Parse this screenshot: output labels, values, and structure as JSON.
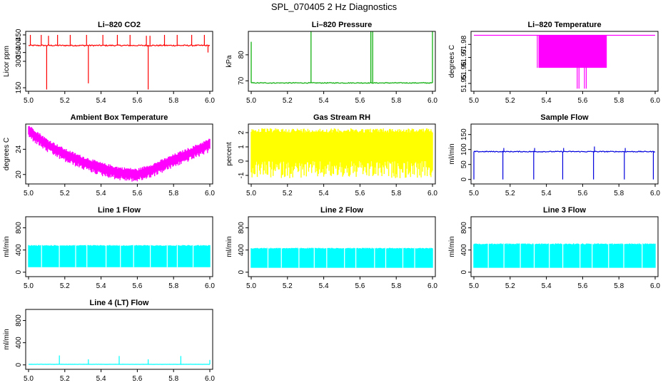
{
  "figure": {
    "title": "SPL_070405  2 Hz Diagnostics"
  },
  "chart_data": [
    {
      "type": "line",
      "title": "Li–820 CO2",
      "ylabel": "Licor ppm",
      "color": "#ff0000",
      "xlim": [
        5.0,
        6.0
      ],
      "ylim": [
        130,
        470
      ],
      "xticks": [
        "5.0",
        "5.2",
        "5.4",
        "5.6",
        "5.8",
        "6.0"
      ],
      "yticks": [
        150,
        300,
        350,
        400,
        450
      ],
      "baseline": 390,
      "noise": 7,
      "band": 0,
      "spikes": [
        [
          5.01,
          450
        ],
        [
          5.07,
          450
        ],
        [
          5.1,
          140
        ],
        [
          5.11,
          445
        ],
        [
          5.16,
          450
        ],
        [
          5.23,
          450
        ],
        [
          5.32,
          450
        ],
        [
          5.33,
          175
        ],
        [
          5.41,
          450
        ],
        [
          5.49,
          450
        ],
        [
          5.56,
          450
        ],
        [
          5.65,
          445
        ],
        [
          5.66,
          140
        ],
        [
          5.67,
          445
        ],
        [
          5.75,
          450
        ],
        [
          5.82,
          450
        ],
        [
          5.9,
          450
        ],
        [
          5.97,
          450
        ],
        [
          5.99,
          350
        ]
      ]
    },
    {
      "type": "line",
      "title": "Li–820 Pressure",
      "ylabel": "kPa",
      "color": "#00aa00",
      "xlim": [
        5.0,
        6.0
      ],
      "ylim": [
        66,
        89
      ],
      "xticks": [
        "5.0",
        "5.2",
        "5.4",
        "5.6",
        "5.8",
        "6.0"
      ],
      "yticks": [
        70,
        80
      ],
      "baseline": 69.2,
      "noise": 0.3,
      "band": 0,
      "spikes": [
        [
          5.0,
          85
        ],
        [
          5.33,
          89
        ],
        [
          5.66,
          89
        ],
        [
          5.67,
          89
        ],
        [
          6.0,
          89
        ]
      ]
    },
    {
      "type": "line",
      "title": "Li–820 Temperature",
      "ylabel": "degrees C",
      "color": "#ff00ff",
      "xlim": [
        5.0,
        6.0
      ],
      "ylim": [
        51.944,
        51.99
      ],
      "xticks": [
        "5.0",
        "5.2",
        "5.4",
        "5.6",
        "5.8",
        "6.0"
      ],
      "yticks": [
        51.95,
        51.96,
        51.97,
        51.98
      ],
      "tickfmt": 2,
      "baseline": 51.987,
      "noise": 0,
      "band": 0,
      "block": {
        "x0": 5.36,
        "x1": 5.73,
        "lo": 51.962,
        "hi": 51.987
      },
      "spikes": [
        [
          5.35,
          51.962
        ],
        [
          5.57,
          51.946
        ],
        [
          5.58,
          51.946
        ],
        [
          5.61,
          51.946
        ],
        [
          5.62,
          51.946
        ]
      ]
    },
    {
      "type": "line",
      "title": "Ambient Box Temperature",
      "ylabel": "degrees C",
      "color": "#ff00ff",
      "xlim": [
        5.0,
        6.0
      ],
      "ylim": [
        18.5,
        28
      ],
      "xticks": [
        "5.0",
        "5.2",
        "5.4",
        "5.6",
        "5.8",
        "6.0"
      ],
      "yticks": [
        20,
        24
      ],
      "curve": [
        [
          5.0,
          27.0
        ],
        [
          5.1,
          24.8
        ],
        [
          5.2,
          23.2
        ],
        [
          5.3,
          22.0
        ],
        [
          5.4,
          21.0
        ],
        [
          5.5,
          20.3
        ],
        [
          5.6,
          20.0
        ],
        [
          5.7,
          21.0
        ],
        [
          5.8,
          22.3
        ],
        [
          5.9,
          23.5
        ],
        [
          6.0,
          24.8
        ]
      ],
      "noise": 0,
      "band": 1.1,
      "spikes": []
    },
    {
      "type": "line",
      "title": "Gas Stream RH",
      "ylabel": "percent",
      "color": "#ffff00",
      "xlim": [
        5.0,
        6.0
      ],
      "ylim": [
        -1.6,
        2.6
      ],
      "xticks": [
        "5.0",
        "5.2",
        "5.4",
        "5.6",
        "5.8",
        "6.0"
      ],
      "yticks": [
        -1,
        0,
        1,
        2
      ],
      "baseline": 1.4,
      "noise": 0,
      "band": 0,
      "filled": {
        "lo": 0.0,
        "hi": 2.3,
        "mindip": -1.2
      },
      "spikes": []
    },
    {
      "type": "line",
      "title": "Sample Flow",
      "ylabel": "ml/min",
      "color": "#0000dd",
      "xlim": [
        5.0,
        6.0
      ],
      "ylim": [
        -15,
        185
      ],
      "xticks": [
        "5.0",
        "5.2",
        "5.4",
        "5.6",
        "5.8",
        "6.0"
      ],
      "yticks": [
        0,
        50,
        100,
        150
      ],
      "baseline": 93,
      "noise": 3,
      "band": 0,
      "spikes": [
        [
          5.0,
          0
        ],
        [
          5.16,
          0
        ],
        [
          5.165,
          105
        ],
        [
          5.33,
          0
        ],
        [
          5.335,
          105
        ],
        [
          5.49,
          0
        ],
        [
          5.495,
          105
        ],
        [
          5.66,
          0
        ],
        [
          5.665,
          110
        ],
        [
          5.83,
          0
        ],
        [
          5.835,
          105
        ],
        [
          5.99,
          0
        ]
      ]
    },
    {
      "type": "line",
      "title": "Line 1 Flow",
      "ylabel": "ml/min",
      "color": "#00ffff",
      "xlim": [
        5.0,
        6.0
      ],
      "ylim": [
        -80,
        1000
      ],
      "xticks": [
        "5.0",
        "5.2",
        "5.4",
        "5.6",
        "5.8",
        "6.0"
      ],
      "yticks": [
        0,
        400,
        800
      ],
      "baseline": 290,
      "noise": 0,
      "band": 0,
      "filled": {
        "lo": 90,
        "hi": 490
      },
      "spikes": []
    },
    {
      "type": "line",
      "title": "Line 2 Flow",
      "ylabel": "ml/min",
      "color": "#00ffff",
      "xlim": [
        5.0,
        6.0
      ],
      "ylim": [
        -80,
        1000
      ],
      "xticks": [
        "5.0",
        "5.2",
        "5.4",
        "5.6",
        "5.8",
        "6.0"
      ],
      "yticks": [
        0,
        400,
        800
      ],
      "baseline": 260,
      "noise": 0,
      "band": 0,
      "filled": {
        "lo": 80,
        "hi": 440
      },
      "spikes": []
    },
    {
      "type": "line",
      "title": "Line 3 Flow",
      "ylabel": "ml/min",
      "color": "#00ffff",
      "xlim": [
        5.0,
        6.0
      ],
      "ylim": [
        -80,
        1000
      ],
      "xticks": [
        "5.0",
        "5.2",
        "5.4",
        "5.6",
        "5.8",
        "6.0"
      ],
      "yticks": [
        0,
        400,
        800
      ],
      "baseline": 300,
      "noise": 0,
      "band": 0,
      "filled": {
        "lo": 80,
        "hi": 520
      },
      "spikes": []
    },
    {
      "type": "line",
      "title": "Line 4 (LT) Flow",
      "ylabel": "ml/min",
      "color": "#00ffff",
      "xlim": [
        5.0,
        6.0
      ],
      "ylim": [
        -80,
        1000
      ],
      "xticks": [
        "5.0",
        "5.2",
        "5.4",
        "5.6",
        "5.8",
        "6.0"
      ],
      "yticks": [
        0,
        400,
        800
      ],
      "baseline": 10,
      "noise": 2,
      "band": 0,
      "spikes": [
        [
          5.17,
          170
        ],
        [
          5.33,
          100
        ],
        [
          5.5,
          160
        ],
        [
          5.66,
          100
        ],
        [
          5.84,
          160
        ],
        [
          6.0,
          90
        ]
      ]
    }
  ]
}
